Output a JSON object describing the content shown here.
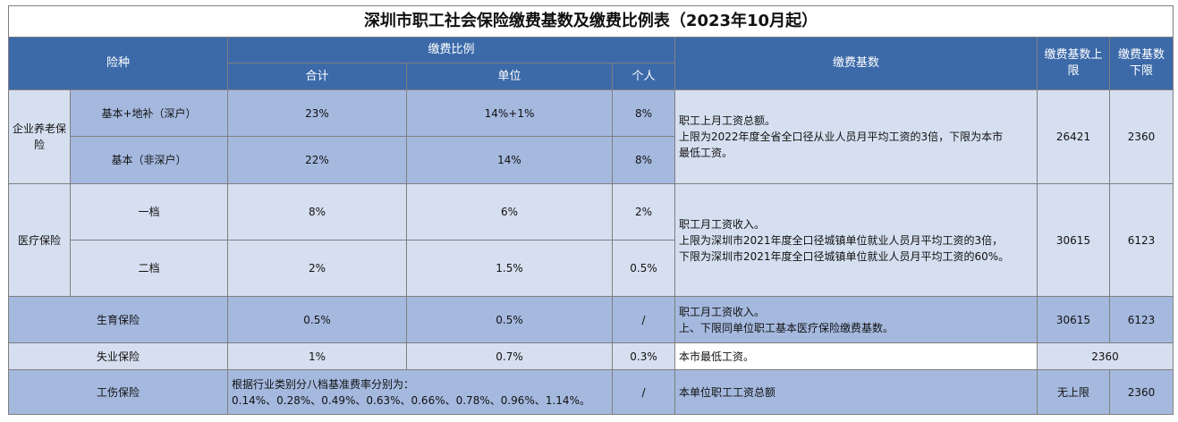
{
  "title": "深圳市职工社会保险缴费基数及缴费比例表（2023年10月起）",
  "headers": {
    "type": "险种",
    "ratio": "缴费比例",
    "total": "合计",
    "unit": "单位",
    "personal": "个人",
    "base": "缴费基数",
    "upper": "缴费基数上限",
    "lower": "缴费基数下限"
  },
  "pension": {
    "name": "企业养老保险",
    "rows": [
      {
        "sub": "基本+地补（深户）",
        "total": "23%",
        "unit": "14%+1%",
        "personal": "8%"
      },
      {
        "sub": "基本（非深户）",
        "total": "22%",
        "unit": "14%",
        "personal": "8%"
      }
    ],
    "base_lines": [
      "职工上月工资总额。",
      "上限为2022年度全省全口径从业人员月平均工资的3倍，下限为本市",
      "最低工资。"
    ],
    "upper": "26421",
    "lower": "2360"
  },
  "medical": {
    "name": "医疗保险",
    "rows": [
      {
        "sub": "一档",
        "total": "8%",
        "unit": "6%",
        "personal": "2%"
      },
      {
        "sub": "二档",
        "total": "2%",
        "unit": "1.5%",
        "personal": "0.5%"
      }
    ],
    "base_lines": [
      "职工月工资收入。",
      "上限为深圳市2021年度全口径城镇单位就业人员月平均工资的3倍，",
      "下限为深圳市2021年度全口径城镇单位就业人员月平均工资的60%。"
    ],
    "upper": "30615",
    "lower": "6123"
  },
  "maternity": {
    "name": "生育保险",
    "total": "0.5%",
    "unit": "0.5%",
    "personal": "/",
    "base_lines": [
      "职工月工资收入。",
      "上、下限同单位职工基本医疗保险缴费基数。"
    ],
    "upper": "30615",
    "lower": "6123"
  },
  "unemployment": {
    "name": "失业保险",
    "total": "1%",
    "unit": "0.7%",
    "personal": "0.3%",
    "base": "本市最低工资。",
    "limit": "2360"
  },
  "injury": {
    "name": "工伤保险",
    "rate_lines": [
      "根据行业类别分八档基准费率分别为：",
      "0.14%、0.28%、0.49%、0.63%、0.66%、0.78%、0.96%、1.14%。"
    ],
    "personal": "/",
    "base": "本单位职工工资总额",
    "upper": "无上限",
    "lower": "2360"
  }
}
